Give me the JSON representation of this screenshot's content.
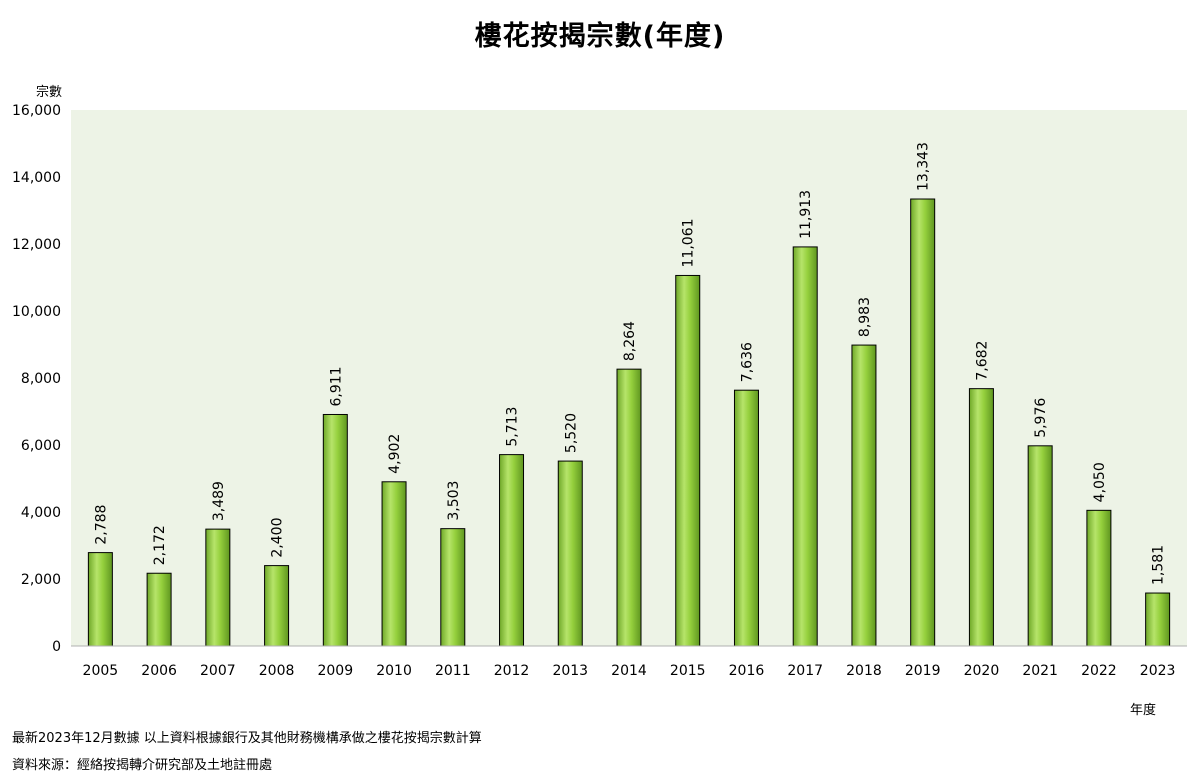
{
  "chart_data": {
    "type": "bar",
    "title": "樓花按揭宗數(年度)",
    "ylabel": "宗數",
    "xlabel": "年度",
    "categories": [
      "2005",
      "2006",
      "2007",
      "2008",
      "2009",
      "2010",
      "2011",
      "2012",
      "2013",
      "2014",
      "2015",
      "2016",
      "2017",
      "2018",
      "2019",
      "2020",
      "2021",
      "2022",
      "2023"
    ],
    "values": [
      2788,
      2172,
      3489,
      2400,
      6911,
      4902,
      3503,
      5713,
      5520,
      8264,
      11061,
      7636,
      11913,
      8983,
      13343,
      7682,
      5976,
      4050,
      1581
    ],
    "data_labels": [
      "2,788",
      "2,172",
      "3,489",
      "2,400",
      "6,911",
      "4,902",
      "3,503",
      "5,713",
      "5,520",
      "8,264",
      "11,061",
      "7,636",
      "11,913",
      "8,983",
      "13,343",
      "7,682",
      "5,976",
      "4,050",
      "1,581"
    ],
    "ylim": [
      0,
      16000
    ],
    "yticks": [
      0,
      2000,
      4000,
      6000,
      8000,
      10000,
      12000,
      14000,
      16000
    ],
    "ytick_labels": [
      "0",
      "2,000",
      "4,000",
      "6,000",
      "8,000",
      "10,000",
      "12,000",
      "14,000",
      "16,000"
    ],
    "grid": false,
    "legend": "none",
    "plot_background": "#edf3e6",
    "bar_color": "#8fcc38",
    "bar_edge": "#000000"
  },
  "footnotes": {
    "line1": "最新2023年12月數據 以上資料根據銀行及其他財務機構承做之樓花按揭宗數計算",
    "line2": "資料來源：經絡按揭轉介研究部及土地註冊處"
  }
}
